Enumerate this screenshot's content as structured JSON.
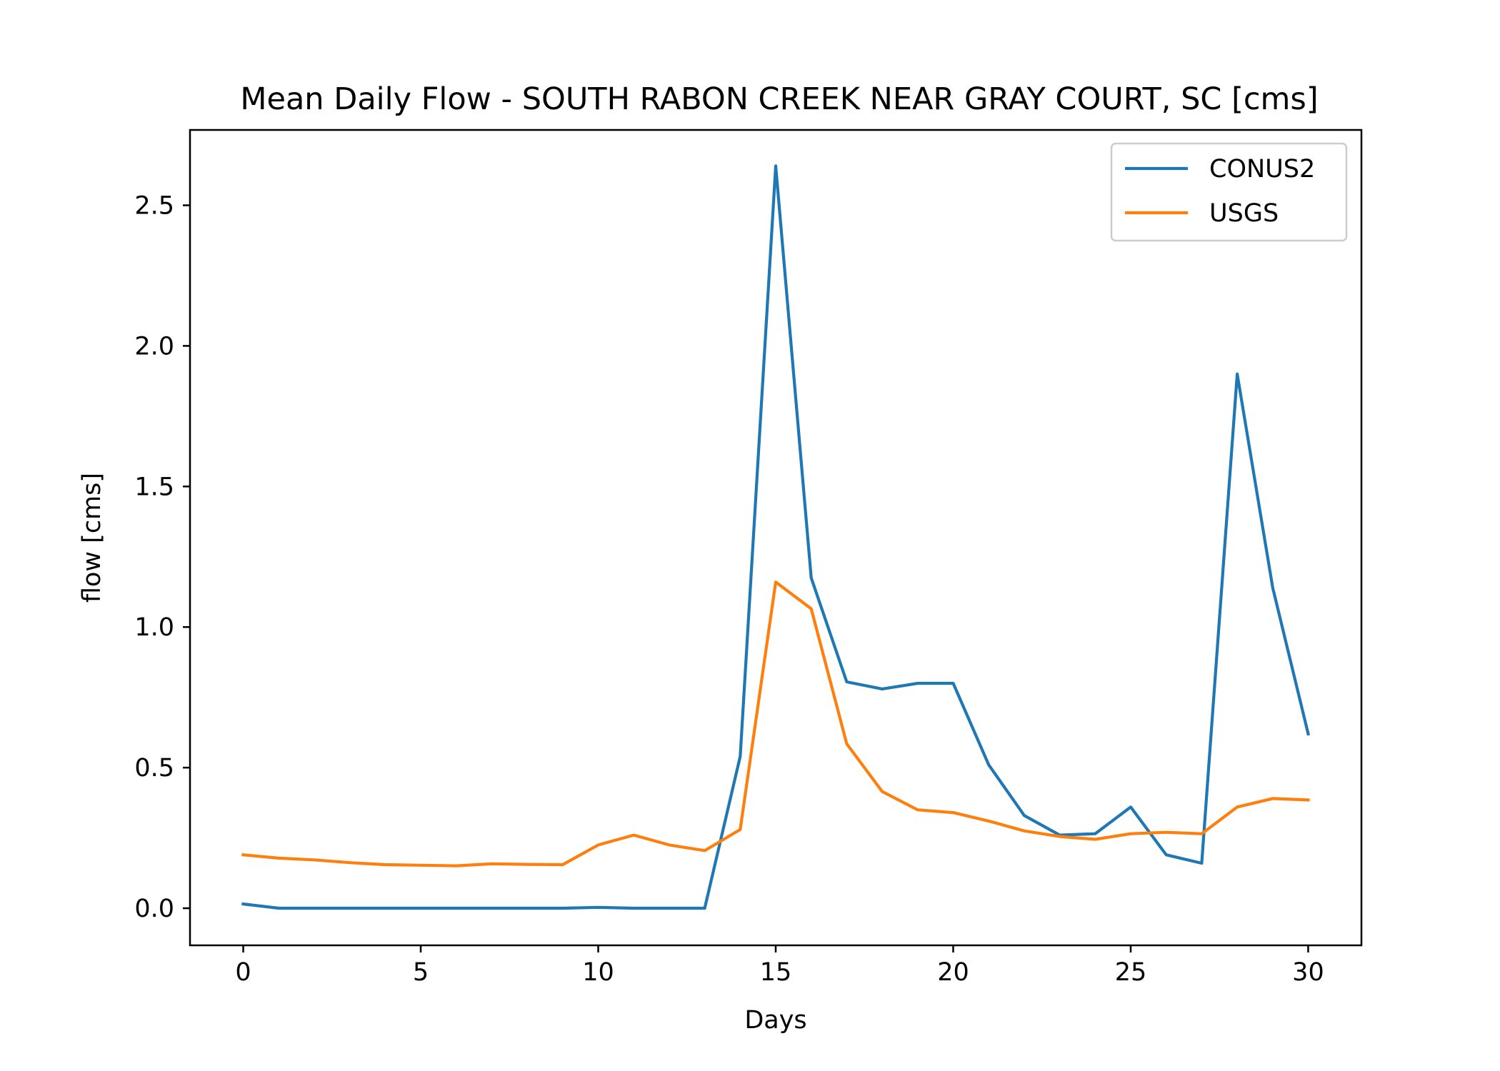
{
  "chart_data": {
    "type": "line",
    "title": "Mean Daily Flow - SOUTH RABON CREEK NEAR GRAY COURT, SC [cms]",
    "xlabel": "Days",
    "ylabel": "flow [cms]",
    "xlim": [
      -1.5,
      31.5
    ],
    "ylim": [
      -0.132,
      2.768
    ],
    "xticks": [
      0,
      5,
      10,
      15,
      20,
      25,
      30
    ],
    "xtick_labels": [
      "0",
      "5",
      "10",
      "15",
      "20",
      "25",
      "30"
    ],
    "yticks": [
      0.0,
      0.5,
      1.0,
      1.5,
      2.0,
      2.5
    ],
    "ytick_labels": [
      "0.0",
      "0.5",
      "1.0",
      "1.5",
      "2.0",
      "2.5"
    ],
    "grid": false,
    "legend_position": "top-right",
    "x": [
      0,
      1,
      2,
      3,
      4,
      5,
      6,
      7,
      8,
      9,
      10,
      11,
      12,
      13,
      14,
      15,
      16,
      17,
      18,
      19,
      20,
      21,
      22,
      23,
      24,
      25,
      26,
      27,
      28,
      29,
      30
    ],
    "series": [
      {
        "name": "CONUS2",
        "color": "#1f77b4",
        "values": [
          0.015,
          0.0,
          0.0,
          0.0,
          0.0,
          0.0,
          0.0,
          0.0,
          0.0,
          0.0,
          0.003,
          0.0,
          0.0,
          0.0,
          0.54,
          2.64,
          1.175,
          0.805,
          0.78,
          0.8,
          0.8,
          0.51,
          0.33,
          0.26,
          0.265,
          0.36,
          0.19,
          0.16,
          1.9,
          1.14,
          0.62
        ]
      },
      {
        "name": "USGS",
        "color": "#ff7f0e",
        "values": [
          0.19,
          0.178,
          0.172,
          0.162,
          0.155,
          0.153,
          0.151,
          0.158,
          0.156,
          0.155,
          0.225,
          0.26,
          0.225,
          0.205,
          0.28,
          1.16,
          1.065,
          0.585,
          0.415,
          0.35,
          0.34,
          0.31,
          0.275,
          0.255,
          0.245,
          0.265,
          0.27,
          0.265,
          0.36,
          0.39,
          0.385
        ]
      }
    ]
  }
}
